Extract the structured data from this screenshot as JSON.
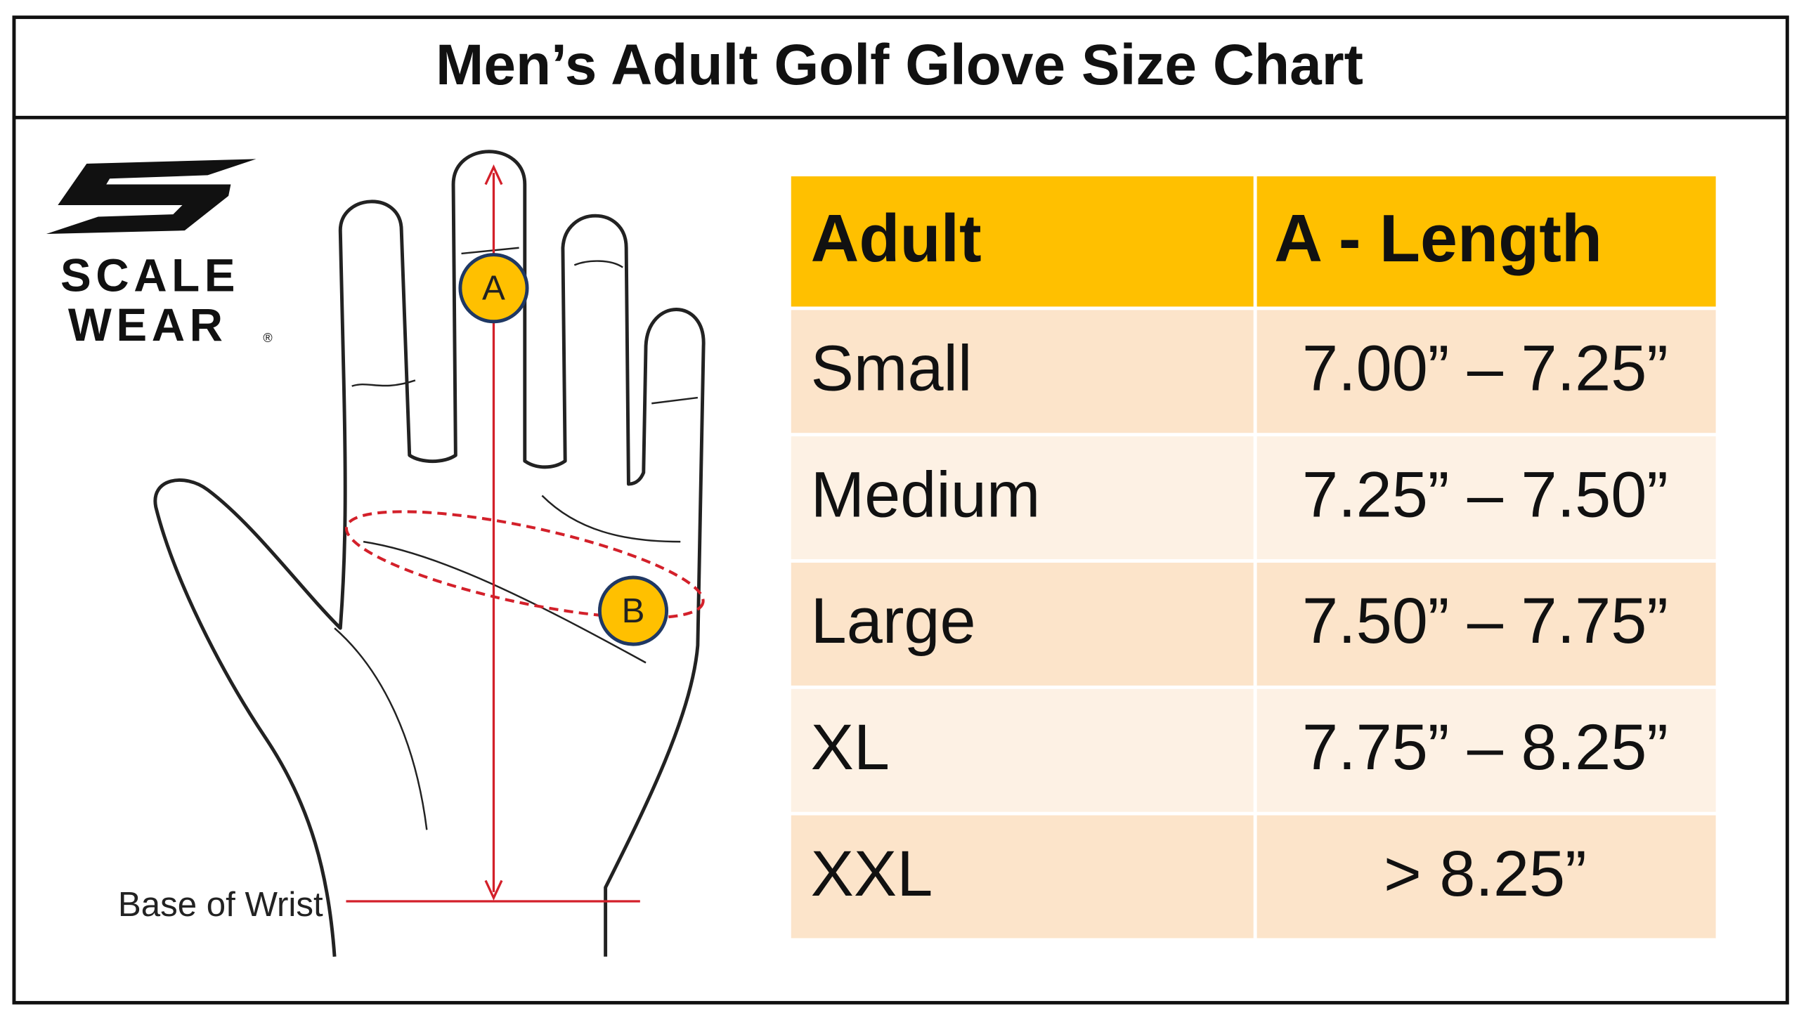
{
  "title": "Men’s Adult Golf Glove Size Chart",
  "logo": {
    "line1": "SCALE",
    "line2": "WEAR",
    "mark": "®"
  },
  "diagram": {
    "marker_a": "A",
    "marker_b": "B",
    "wrist_label": "Base of Wrist"
  },
  "table": {
    "header": [
      "Adult",
      "A - Length"
    ],
    "rows": [
      [
        "Small",
        "7.00” – 7.25”"
      ],
      [
        "Medium",
        "7.25” – 7.50”"
      ],
      [
        "Large",
        "7.50” – 7.75”"
      ],
      [
        "XL",
        "7.75” – 8.25”"
      ],
      [
        "XXL",
        "> 8.25”"
      ]
    ]
  }
}
